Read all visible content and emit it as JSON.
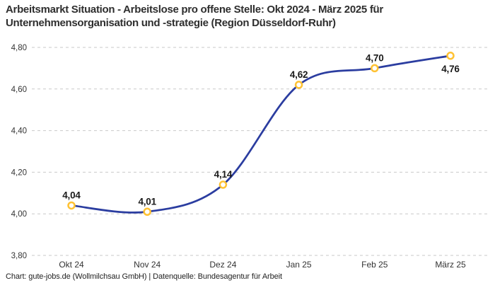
{
  "header": {
    "line1": "Arbeitsmarkt Situation - Arbeitslose pro offene Stelle: Okt 2024 - März 2025 für",
    "line2": "Unternehmensorganisation und -strategie (Region Düsseldorf-Ruhr)"
  },
  "footer": {
    "credit": "Chart: gute-jobs.de (Wollmilchsau GmbH) | Datenquelle: Bundesagentur für Arbeit"
  },
  "chart_data": {
    "type": "line",
    "title": "Arbeitsmarkt Situation - Arbeitslose pro offene Stelle: Okt 2024 - März 2025 für Unternehmensorganisation und -strategie (Region Düsseldorf-Ruhr)",
    "categories": [
      "Okt 24",
      "Nov 24",
      "Dez 24",
      "Jan 25",
      "Feb 25",
      "März 25"
    ],
    "values": [
      4.04,
      4.01,
      4.14,
      4.62,
      4.7,
      4.76
    ],
    "value_labels": [
      "4,04",
      "4,01",
      "4,14",
      "4,62",
      "4,70",
      "4,76"
    ],
    "xlabel": "",
    "ylabel": "",
    "ylim": [
      3.8,
      4.8
    ],
    "yticks": [
      3.8,
      4.0,
      4.2,
      4.4,
      4.6,
      4.8
    ],
    "ytick_labels": [
      "3,80",
      "4,00",
      "4,20",
      "4,40",
      "4,60",
      "4,80"
    ],
    "grid": "horizontal-dashed",
    "legend": "none",
    "line_smoothing": "spline",
    "colors": {
      "line": "#2B3DA0",
      "marker_ring": "#FFC233",
      "marker_fill": "#FFFFFF",
      "gridline": "#C9C9C9",
      "title_text": "#2E2E2E",
      "axis_text": "#333333",
      "value_label_text": "#1A1A1A",
      "background": "#FFFFFF"
    }
  }
}
